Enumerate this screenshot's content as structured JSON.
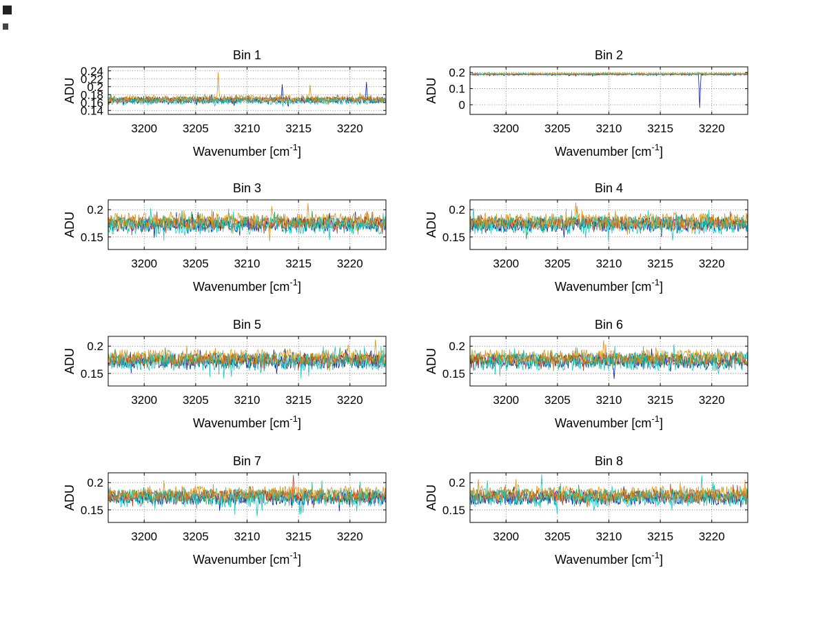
{
  "figure": {
    "background": "#ffffff",
    "grid_rows": 4,
    "grid_cols": 2,
    "xlabel_parts": {
      "pre": "Wavenumber [cm",
      "sup": "-1",
      "post": "]"
    },
    "artifacts": [
      {
        "name": "dark-mark-top-left"
      },
      {
        "name": "dark-mark-left-edge"
      }
    ]
  },
  "chart_data": [
    {
      "type": "line",
      "title": "Bin 1",
      "xlabel": "Wavenumber [cm-1]",
      "ylabel": "ADU",
      "xlim": [
        3196.5,
        3223.5
      ],
      "xticks": [
        3200,
        3205,
        3210,
        3215,
        3220
      ],
      "ylim": [
        0.13,
        0.25
      ],
      "yticks": [
        0.14,
        0.16,
        0.18,
        0.2,
        0.22,
        0.24
      ],
      "grid": true,
      "n_points": 400,
      "series": [
        {
          "name": "blue",
          "color": "#0018a8",
          "mean": 0.166,
          "amplitude": 0.008,
          "seed": 11
        },
        {
          "name": "green",
          "color": "#1e9e50",
          "mean": 0.168,
          "amplitude": 0.007,
          "seed": 12
        },
        {
          "name": "red",
          "color": "#c03a20",
          "mean": 0.167,
          "amplitude": 0.007,
          "seed": 13
        },
        {
          "name": "cyan",
          "color": "#16c5bf",
          "mean": 0.164,
          "amplitude": 0.009,
          "seed": 14
        },
        {
          "name": "orange",
          "color": "#da9118",
          "mean": 0.17,
          "amplitude": 0.009,
          "seed": 15
        }
      ],
      "spikes": [
        {
          "series": 4,
          "x": 3207.2,
          "y": 0.236
        },
        {
          "series": 4,
          "x": 3216.1,
          "y": 0.205
        },
        {
          "series": 0,
          "x": 3221.6,
          "y": 0.212
        },
        {
          "series": 0,
          "x": 3213.4,
          "y": 0.206
        }
      ]
    },
    {
      "type": "line",
      "title": "Bin 2",
      "xlabel": "Wavenumber [cm-1]",
      "ylabel": "ADU",
      "xlim": [
        3196.5,
        3223.5
      ],
      "xticks": [
        3200,
        3205,
        3210,
        3215,
        3220
      ],
      "ylim": [
        -0.06,
        0.235
      ],
      "yticks": [
        0,
        0.1,
        0.2
      ],
      "grid": true,
      "n_points": 400,
      "series": [
        {
          "name": "blue",
          "color": "#0018a8",
          "mean": 0.188,
          "amplitude": 0.006,
          "seed": 21
        },
        {
          "name": "green",
          "color": "#1e9e50",
          "mean": 0.19,
          "amplitude": 0.005,
          "seed": 22
        },
        {
          "name": "red",
          "color": "#c03a20",
          "mean": 0.189,
          "amplitude": 0.005,
          "seed": 23
        },
        {
          "name": "cyan",
          "color": "#16c5bf",
          "mean": 0.191,
          "amplitude": 0.006,
          "seed": 24
        },
        {
          "name": "orange",
          "color": "#da9118",
          "mean": 0.192,
          "amplitude": 0.006,
          "seed": 25
        }
      ],
      "spikes": [
        {
          "series": 0,
          "x": 3218.8,
          "y": -0.02
        }
      ]
    },
    {
      "type": "line",
      "title": "Bin 3",
      "xlabel": "Wavenumber [cm-1]",
      "ylabel": "ADU",
      "xlim": [
        3196.5,
        3223.5
      ],
      "xticks": [
        3200,
        3205,
        3210,
        3215,
        3220
      ],
      "ylim": [
        0.127,
        0.218
      ],
      "yticks": [
        0.15,
        0.2
      ],
      "grid": true,
      "n_points": 400,
      "series": [
        {
          "name": "blue",
          "color": "#0018a8",
          "mean": 0.172,
          "amplitude": 0.013,
          "seed": 31
        },
        {
          "name": "green",
          "color": "#1e9e50",
          "mean": 0.176,
          "amplitude": 0.012,
          "seed": 32
        },
        {
          "name": "red",
          "color": "#c03a20",
          "mean": 0.175,
          "amplitude": 0.012,
          "seed": 33
        },
        {
          "name": "cyan",
          "color": "#16c5bf",
          "mean": 0.172,
          "amplitude": 0.017,
          "seed": 34
        },
        {
          "name": "orange",
          "color": "#da9118",
          "mean": 0.18,
          "amplitude": 0.014,
          "seed": 35
        }
      ],
      "spikes": [
        {
          "series": 4,
          "x": 3215.9,
          "y": 0.212
        },
        {
          "series": 4,
          "x": 3212.2,
          "y": 0.142
        }
      ]
    },
    {
      "type": "line",
      "title": "Bin 4",
      "xlabel": "Wavenumber [cm-1]",
      "ylabel": "ADU",
      "xlim": [
        3196.5,
        3223.5
      ],
      "xticks": [
        3200,
        3205,
        3210,
        3215,
        3220
      ],
      "ylim": [
        0.127,
        0.218
      ],
      "yticks": [
        0.15,
        0.2
      ],
      "grid": true,
      "n_points": 400,
      "series": [
        {
          "name": "blue",
          "color": "#0018a8",
          "mean": 0.172,
          "amplitude": 0.013,
          "seed": 41
        },
        {
          "name": "green",
          "color": "#1e9e50",
          "mean": 0.176,
          "amplitude": 0.012,
          "seed": 42
        },
        {
          "name": "red",
          "color": "#c03a20",
          "mean": 0.175,
          "amplitude": 0.012,
          "seed": 43
        },
        {
          "name": "cyan",
          "color": "#16c5bf",
          "mean": 0.172,
          "amplitude": 0.017,
          "seed": 44
        },
        {
          "name": "orange",
          "color": "#da9118",
          "mean": 0.18,
          "amplitude": 0.014,
          "seed": 45
        }
      ],
      "spikes": [
        {
          "series": 4,
          "x": 3206.8,
          "y": 0.213
        },
        {
          "series": 1,
          "x": 3202.0,
          "y": 0.146
        }
      ]
    },
    {
      "type": "line",
      "title": "Bin 5",
      "xlabel": "Wavenumber [cm-1]",
      "ylabel": "ADU",
      "xlim": [
        3196.5,
        3223.5
      ],
      "xticks": [
        3200,
        3205,
        3210,
        3215,
        3220
      ],
      "ylim": [
        0.127,
        0.218
      ],
      "yticks": [
        0.15,
        0.2
      ],
      "grid": true,
      "n_points": 400,
      "series": [
        {
          "name": "blue",
          "color": "#0018a8",
          "mean": 0.172,
          "amplitude": 0.013,
          "seed": 51
        },
        {
          "name": "green",
          "color": "#1e9e50",
          "mean": 0.176,
          "amplitude": 0.012,
          "seed": 52
        },
        {
          "name": "red",
          "color": "#c03a20",
          "mean": 0.175,
          "amplitude": 0.012,
          "seed": 53
        },
        {
          "name": "cyan",
          "color": "#16c5bf",
          "mean": 0.172,
          "amplitude": 0.017,
          "seed": 54
        },
        {
          "name": "orange",
          "color": "#da9118",
          "mean": 0.18,
          "amplitude": 0.014,
          "seed": 55
        }
      ],
      "spikes": [
        {
          "series": 4,
          "x": 3222.5,
          "y": 0.212
        }
      ]
    },
    {
      "type": "line",
      "title": "Bin 6",
      "xlabel": "Wavenumber [cm-1]",
      "ylabel": "ADU",
      "xlim": [
        3196.5,
        3223.5
      ],
      "xticks": [
        3200,
        3205,
        3210,
        3215,
        3220
      ],
      "ylim": [
        0.127,
        0.218
      ],
      "yticks": [
        0.15,
        0.2
      ],
      "grid": true,
      "n_points": 400,
      "series": [
        {
          "name": "blue",
          "color": "#0018a8",
          "mean": 0.172,
          "amplitude": 0.013,
          "seed": 61
        },
        {
          "name": "green",
          "color": "#1e9e50",
          "mean": 0.176,
          "amplitude": 0.012,
          "seed": 62
        },
        {
          "name": "red",
          "color": "#c03a20",
          "mean": 0.175,
          "amplitude": 0.012,
          "seed": 63
        },
        {
          "name": "cyan",
          "color": "#16c5bf",
          "mean": 0.172,
          "amplitude": 0.017,
          "seed": 64
        },
        {
          "name": "orange",
          "color": "#da9118",
          "mean": 0.18,
          "amplitude": 0.014,
          "seed": 65
        }
      ],
      "spikes": [
        {
          "series": 4,
          "x": 3209.5,
          "y": 0.211
        },
        {
          "series": 0,
          "x": 3210.5,
          "y": 0.14
        }
      ]
    },
    {
      "type": "line",
      "title": "Bin 7",
      "xlabel": "Wavenumber [cm-1]",
      "ylabel": "ADU",
      "xlim": [
        3196.5,
        3223.5
      ],
      "xticks": [
        3200,
        3205,
        3210,
        3215,
        3220
      ],
      "ylim": [
        0.127,
        0.218
      ],
      "yticks": [
        0.15,
        0.2
      ],
      "grid": true,
      "n_points": 400,
      "series": [
        {
          "name": "blue",
          "color": "#0018a8",
          "mean": 0.172,
          "amplitude": 0.013,
          "seed": 71
        },
        {
          "name": "green",
          "color": "#1e9e50",
          "mean": 0.176,
          "amplitude": 0.012,
          "seed": 72
        },
        {
          "name": "red",
          "color": "#c03a20",
          "mean": 0.175,
          "amplitude": 0.012,
          "seed": 73
        },
        {
          "name": "cyan",
          "color": "#16c5bf",
          "mean": 0.172,
          "amplitude": 0.017,
          "seed": 74
        },
        {
          "name": "orange",
          "color": "#da9118",
          "mean": 0.18,
          "amplitude": 0.014,
          "seed": 75
        }
      ],
      "spikes": [
        {
          "series": 2,
          "x": 3214.5,
          "y": 0.214
        },
        {
          "series": 3,
          "x": 3211.0,
          "y": 0.138
        }
      ]
    },
    {
      "type": "line",
      "title": "Bin 8",
      "xlabel": "Wavenumber [cm-1]",
      "ylabel": "ADU",
      "xlim": [
        3196.5,
        3223.5
      ],
      "xticks": [
        3200,
        3205,
        3210,
        3215,
        3220
      ],
      "ylim": [
        0.127,
        0.218
      ],
      "yticks": [
        0.15,
        0.2
      ],
      "grid": true,
      "n_points": 400,
      "series": [
        {
          "name": "blue",
          "color": "#0018a8",
          "mean": 0.172,
          "amplitude": 0.013,
          "seed": 81
        },
        {
          "name": "green",
          "color": "#1e9e50",
          "mean": 0.176,
          "amplitude": 0.012,
          "seed": 82
        },
        {
          "name": "red",
          "color": "#c03a20",
          "mean": 0.175,
          "amplitude": 0.012,
          "seed": 83
        },
        {
          "name": "cyan",
          "color": "#16c5bf",
          "mean": 0.172,
          "amplitude": 0.017,
          "seed": 84
        },
        {
          "name": "orange",
          "color": "#da9118",
          "mean": 0.18,
          "amplitude": 0.014,
          "seed": 85
        }
      ],
      "spikes": [
        {
          "series": 3,
          "x": 3203.5,
          "y": 0.215
        },
        {
          "series": 3,
          "x": 3219.0,
          "y": 0.213
        }
      ]
    }
  ]
}
